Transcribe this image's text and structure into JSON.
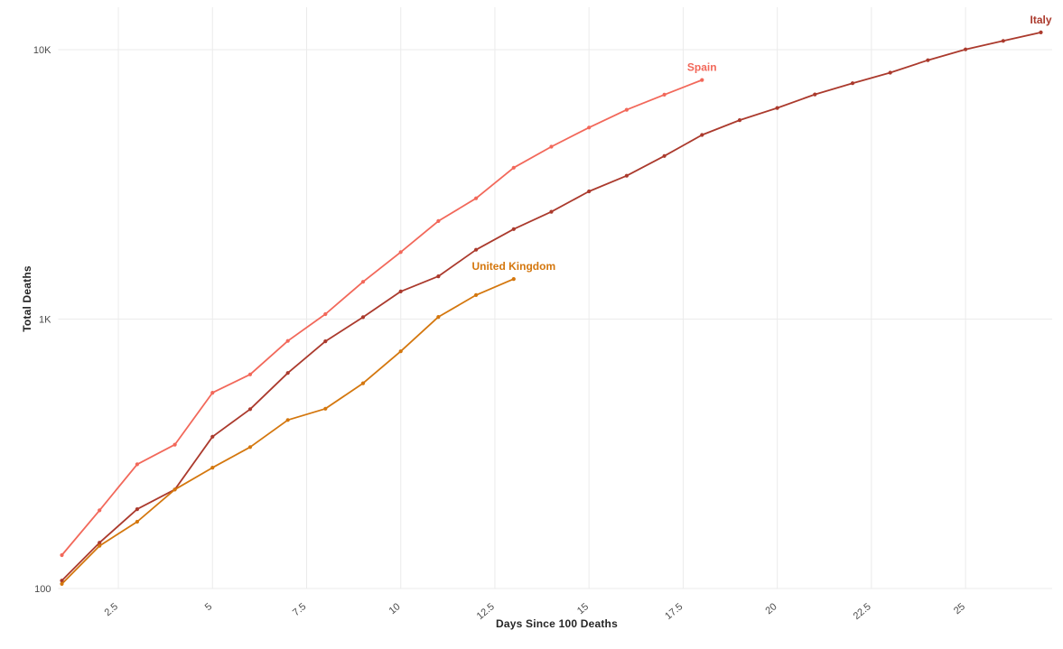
{
  "chart_data": {
    "type": "line",
    "title": "",
    "xlabel": "Days Since 100 Deaths",
    "ylabel": "Total Deaths",
    "grid": true,
    "legend": "inline-end-labels",
    "x_axis": {
      "min": 1,
      "max": 27.3,
      "ticks": [
        {
          "value": 2.5,
          "label": "2.5"
        },
        {
          "value": 5,
          "label": "5"
        },
        {
          "value": 7.5,
          "label": "7.5"
        },
        {
          "value": 10,
          "label": "10"
        },
        {
          "value": 12.5,
          "label": "12.5"
        },
        {
          "value": 15,
          "label": "15"
        },
        {
          "value": 17.5,
          "label": "17.5"
        },
        {
          "value": 20,
          "label": "20"
        },
        {
          "value": 22.5,
          "label": "22.5"
        },
        {
          "value": 25,
          "label": "25"
        }
      ]
    },
    "y_axis": {
      "scale": "log",
      "min": 100,
      "max": 13000,
      "ticks": [
        {
          "value": 100,
          "label": "100"
        },
        {
          "value": 1000,
          "label": "1K"
        },
        {
          "value": 10000,
          "label": "10K"
        }
      ]
    },
    "series": [
      {
        "name": "Italy",
        "color": "#ab3a2d",
        "x": [
          1,
          2,
          3,
          4,
          5,
          6,
          7,
          8,
          9,
          10,
          11,
          12,
          13,
          14,
          15,
          16,
          17,
          18,
          19,
          20,
          21,
          22,
          23,
          24,
          25,
          26,
          27
        ],
        "values": [
          107,
          148,
          197,
          233,
          366,
          463,
          631,
          827,
          1016,
          1266,
          1441,
          1809,
          2158,
          2503,
          2978,
          3405,
          4032,
          4825,
          5476,
          6077,
          6820,
          7503,
          8215,
          9134,
          10023,
          10779,
          11591
        ]
      },
      {
        "name": "Spain",
        "color": "#f2685a",
        "x": [
          1,
          2,
          3,
          4,
          5,
          6,
          7,
          8,
          9,
          10,
          11,
          12,
          13,
          14,
          15,
          16,
          17,
          18
        ],
        "values": [
          133,
          195,
          289,
          342,
          533,
          623,
          830,
          1043,
          1375,
          1772,
          2311,
          2808,
          3647,
          4365,
          5138,
          5982,
          6803,
          7716
        ]
      },
      {
        "name": "United Kingdom",
        "color": "#d4770e",
        "x": [
          1,
          2,
          3,
          4,
          5,
          6,
          7,
          8,
          9,
          10,
          11,
          12,
          13
        ],
        "values": [
          104,
          144,
          177,
          233,
          281,
          335,
          422,
          465,
          578,
          759,
          1019,
          1228,
          1408
        ]
      }
    ]
  },
  "colors": {
    "background": "#ffffff",
    "grid": "#ebebeb",
    "tick_text": "#4a4a4a",
    "axis_title": "#262626"
  }
}
